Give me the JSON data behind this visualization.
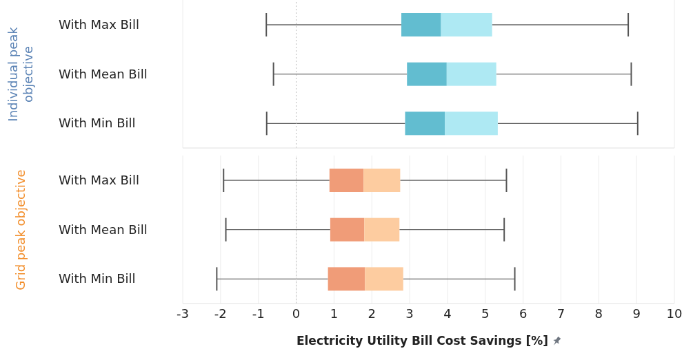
{
  "chart_data": [
    {
      "type": "box",
      "ylabel": "Individual peak objective",
      "categories": [
        "With Max Bill",
        "With Mean Bill",
        "With Min Bill"
      ],
      "orientation": "horizontal",
      "xlim": [
        -3,
        10
      ],
      "xticks": [
        -3,
        -2,
        -1,
        0,
        1,
        2,
        3,
        4,
        5,
        6,
        7,
        8,
        9,
        10
      ],
      "grid": "x",
      "tick_labels": "y",
      "ref_lines": [
        {
          "axis": "x",
          "value": 0,
          "line_style": "dotted"
        }
      ],
      "series": [
        {
          "color": "#aee9f3",
          "colors": [
            "#62bdd0",
            "#62bdd0",
            "#62bdd0"
          ],
          "boxes": [
            {
              "low": -0.79,
              "q1": 2.78,
              "median": 3.83,
              "q3": 5.18,
              "high": 8.78
            },
            {
              "low": -0.6,
              "q1": 2.93,
              "median": 3.98,
              "q3": 5.29,
              "high": 8.86
            },
            {
              "low": -0.78,
              "q1": 2.88,
              "median": 3.93,
              "q3": 5.33,
              "high": 9.03
            }
          ]
        }
      ]
    },
    {
      "type": "box",
      "ylabel": "Grid peak objective",
      "xlabel": "Electricity Utility Bill Cost Savings [%]",
      "categories": [
        "With Max Bill",
        "With Mean Bill",
        "With Min Bill"
      ],
      "orientation": "horizontal",
      "xlim": [
        -3,
        10
      ],
      "xticks": [
        -3,
        -2,
        -1,
        0,
        1,
        2,
        3,
        4,
        5,
        6,
        7,
        8,
        9,
        10
      ],
      "grid": "x",
      "ref_lines": [
        {
          "axis": "x",
          "value": 0,
          "line_style": "dotted"
        }
      ],
      "series": [
        {
          "color": "#fdcca0",
          "colors": [
            "#f09c78",
            "#f09c78",
            "#f09c78"
          ],
          "boxes": [
            {
              "low": -1.92,
              "q1": 0.88,
              "median": 1.78,
              "q3": 2.75,
              "high": 5.56
            },
            {
              "low": -1.86,
              "q1": 0.9,
              "median": 1.8,
              "q3": 2.73,
              "high": 5.5
            },
            {
              "low": -2.1,
              "q1": 0.84,
              "median": 1.82,
              "q3": 2.83,
              "high": 5.78
            }
          ]
        }
      ]
    }
  ]
}
